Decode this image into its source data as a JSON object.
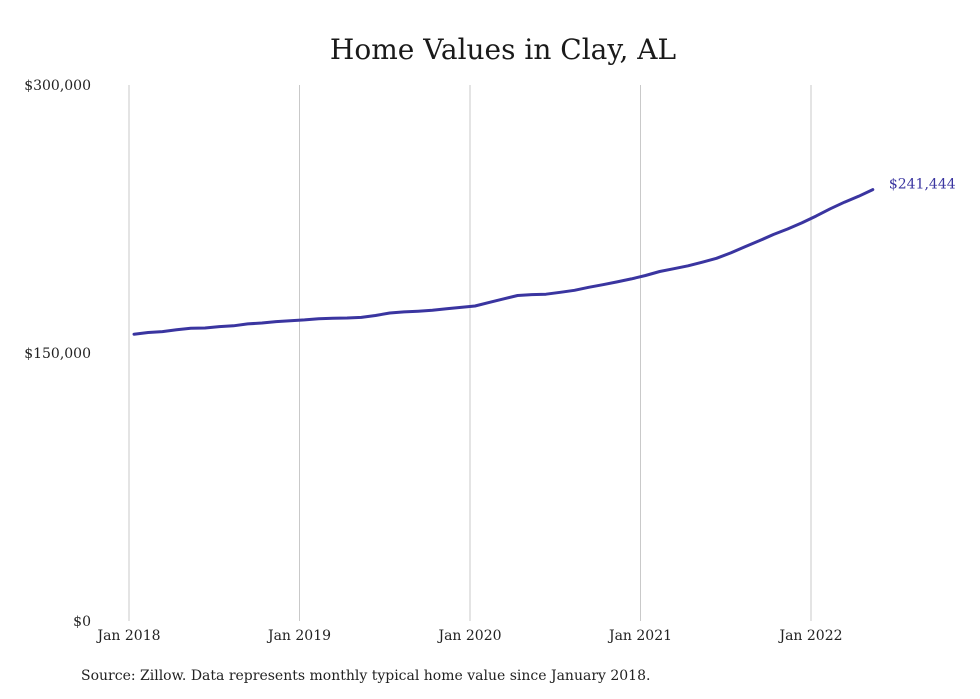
{
  "chart_data": {
    "type": "line",
    "title": "Home Values in Clay, AL",
    "xlabel": "",
    "ylabel": "",
    "ylim": [
      0,
      300000
    ],
    "grid": "vertical",
    "y_ticks": [
      {
        "value": 0,
        "label": "$0"
      },
      {
        "value": 150000,
        "label": "$150,000"
      },
      {
        "value": 300000,
        "label": "$300,000"
      }
    ],
    "x_ticks": [
      {
        "value": "2018-01",
        "label": "Jan 2018"
      },
      {
        "value": "2019-01",
        "label": "Jan 2019"
      },
      {
        "value": "2020-01",
        "label": "Jan 2020"
      },
      {
        "value": "2021-01",
        "label": "Jan 2021"
      },
      {
        "value": "2022-01",
        "label": "Jan 2022"
      }
    ],
    "line_color": "#3a35a0",
    "x": [
      "2018-01",
      "2018-02",
      "2018-03",
      "2018-04",
      "2018-05",
      "2018-06",
      "2018-07",
      "2018-08",
      "2018-09",
      "2018-10",
      "2018-11",
      "2018-12",
      "2019-01",
      "2019-02",
      "2019-03",
      "2019-04",
      "2019-05",
      "2019-06",
      "2019-07",
      "2019-08",
      "2019-09",
      "2019-10",
      "2019-11",
      "2019-12",
      "2020-01",
      "2020-02",
      "2020-03",
      "2020-04",
      "2020-05",
      "2020-06",
      "2020-07",
      "2020-08",
      "2020-09",
      "2020-10",
      "2020-11",
      "2020-12",
      "2021-01",
      "2021-02",
      "2021-03",
      "2021-04",
      "2021-05",
      "2021-06",
      "2021-07",
      "2021-08",
      "2021-09",
      "2021-10",
      "2021-11",
      "2021-12",
      "2022-01",
      "2022-02",
      "2022-03",
      "2022-04",
      "2022-05"
    ],
    "series": [
      {
        "values": [
          160500,
          161500,
          162000,
          163000,
          163800,
          164000,
          164800,
          165200,
          166300,
          166800,
          167600,
          168100,
          168500,
          169200,
          169500,
          169600,
          169900,
          171000,
          172400,
          173000,
          173400,
          173900,
          174800,
          175500,
          176300,
          178300,
          180300,
          182200,
          182700,
          182900,
          184000,
          185100,
          186800,
          188200,
          189800,
          191500,
          193400,
          195600,
          197200,
          198800,
          200800,
          203000,
          206000,
          209500,
          212800,
          216300,
          219400,
          222800,
          226600,
          230700,
          234400,
          237700,
          241444
        ]
      }
    ],
    "end_label": "$241,444"
  },
  "footer": {
    "source": "Source: Zillow. Data represents monthly typical home value since January 2018."
  }
}
